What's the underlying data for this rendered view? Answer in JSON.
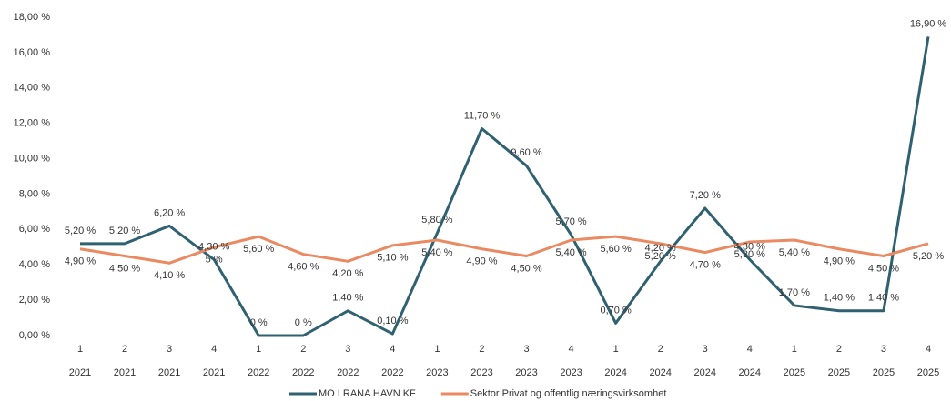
{
  "chart_data": {
    "type": "line",
    "quarters": [
      "1",
      "2",
      "3",
      "4",
      "1",
      "2",
      "3",
      "4",
      "1",
      "2",
      "3",
      "4",
      "1",
      "2",
      "3",
      "4",
      "1",
      "2",
      "3",
      "4"
    ],
    "years": [
      "2021",
      "2021",
      "2021",
      "2021",
      "2022",
      "2022",
      "2022",
      "2022",
      "2023",
      "2023",
      "2023",
      "2023",
      "2024",
      "2024",
      "2024",
      "2024",
      "2025",
      "2025",
      "2025",
      "2025"
    ],
    "ylim": [
      0,
      18
    ],
    "yticks": [
      {
        "value": 0,
        "label": "0,00 %"
      },
      {
        "value": 2,
        "label": "2,00 %"
      },
      {
        "value": 4,
        "label": "4,00 %"
      },
      {
        "value": 6,
        "label": "6,00 %"
      },
      {
        "value": 8,
        "label": "8,00 %"
      },
      {
        "value": 10,
        "label": "10,00 %"
      },
      {
        "value": 12,
        "label": "12,00 %"
      },
      {
        "value": 14,
        "label": "14,00 %"
      },
      {
        "value": 16,
        "label": "16,00 %"
      },
      {
        "value": 18,
        "label": "18,00 %"
      }
    ],
    "series": [
      {
        "name": "MO I RANA HAVN KF",
        "color": "#2f6170",
        "values": [
          5.2,
          5.2,
          6.2,
          4.3,
          0,
          0,
          1.4,
          0.1,
          5.8,
          11.7,
          9.6,
          5.7,
          0.7,
          4.2,
          7.2,
          4.3,
          1.7,
          1.4,
          1.4,
          16.9
        ],
        "value_labels": [
          "5,20 %",
          "5,20 %",
          "6,20 %",
          "4,30 %",
          "0 %",
          "0 %",
          "1,40 %",
          "0,10 %",
          "5,80 %",
          "11,70 %",
          "9,60 %",
          "5,70 %",
          "0,70 %",
          "4,20 %",
          "7,20 %",
          "4,30 %",
          "1,70 %",
          "1,40 %",
          "1,40 %",
          "16,90 %"
        ]
      },
      {
        "name": "Sektor Privat og offentlig næringsvirksomhet",
        "color": "#ea8a62",
        "values": [
          4.9,
          4.5,
          4.1,
          5,
          5.6,
          4.6,
          4.2,
          5.1,
          5.4,
          4.9,
          4.5,
          5.4,
          5.6,
          5.2,
          4.7,
          5.3,
          5.4,
          4.9,
          4.5,
          5.2
        ],
        "value_labels": [
          "4,90 %",
          "4,50 %",
          "4,10 %",
          "5 %",
          "5,60 %",
          "4,60 %",
          "4,20 %",
          "5,10 %",
          "5,40 %",
          "4,90 %",
          "4,50 %",
          "5,40 %",
          "5,60 %",
          "5,20 %",
          "4,70 %",
          "5,30 %",
          "5,40 %",
          "4,90 %",
          "4,50 %",
          "5,20 %"
        ]
      }
    ]
  }
}
